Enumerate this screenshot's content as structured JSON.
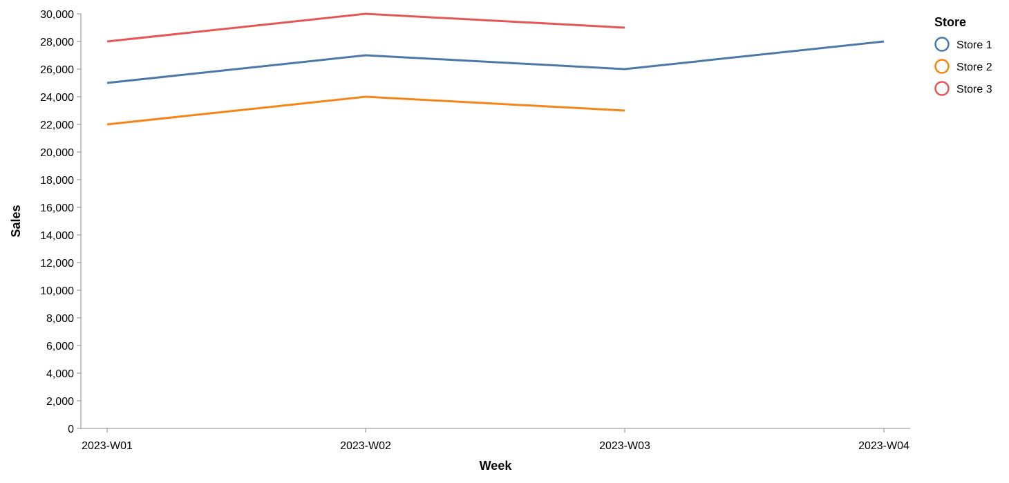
{
  "chart_data": {
    "type": "line",
    "title": "",
    "xlabel": "Week",
    "ylabel": "Sales",
    "categories": [
      "2023-W01",
      "2023-W02",
      "2023-W03",
      "2023-W04"
    ],
    "ylim": [
      0,
      30000
    ],
    "yticks": [
      0,
      2000,
      4000,
      6000,
      8000,
      10000,
      12000,
      14000,
      16000,
      18000,
      20000,
      22000,
      24000,
      26000,
      28000,
      30000
    ],
    "ytick_labels": [
      "0",
      "2,000",
      "4,000",
      "6,000",
      "8,000",
      "10,000",
      "12,000",
      "14,000",
      "16,000",
      "18,000",
      "20,000",
      "22,000",
      "24,000",
      "26,000",
      "28,000",
      "30,000"
    ],
    "grid": false,
    "legend": {
      "title": "Store",
      "placement": "top-right"
    },
    "series": [
      {
        "name": "Store 1",
        "color": "#4c78a8",
        "values": [
          25000,
          27000,
          26000,
          28000
        ]
      },
      {
        "name": "Store 2",
        "color": "#f58518",
        "values": [
          22000,
          24000,
          23000,
          null
        ]
      },
      {
        "name": "Store 3",
        "color": "#e45756",
        "values": [
          28000,
          30000,
          29000,
          null
        ]
      }
    ]
  }
}
